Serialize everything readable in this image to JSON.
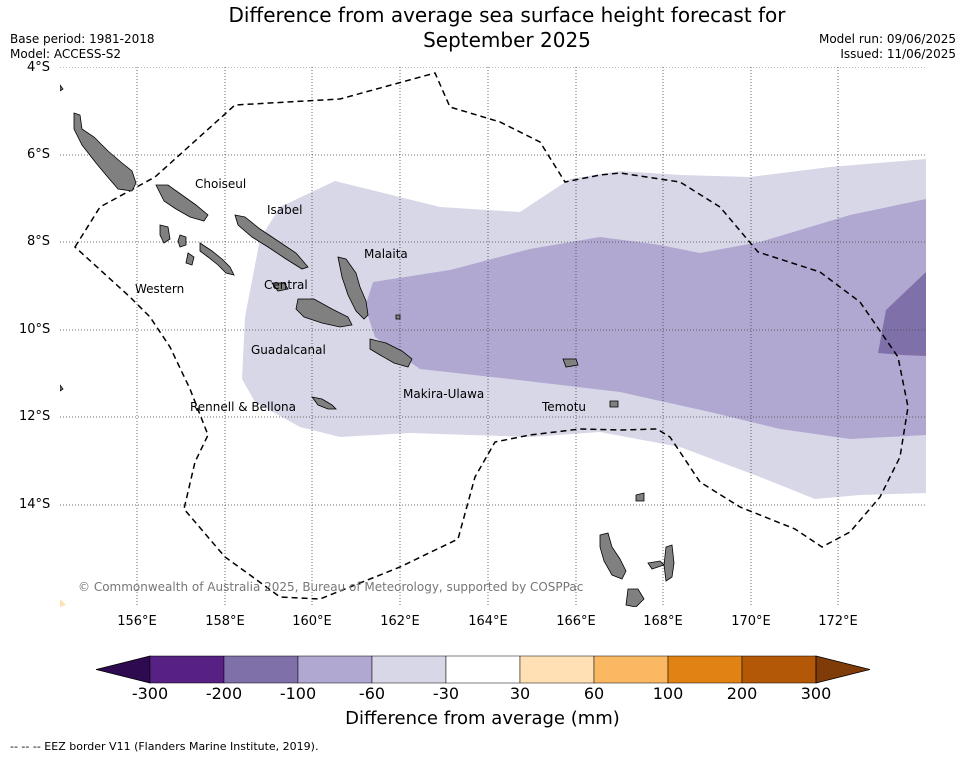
{
  "header": {
    "title_line1": "Difference from average sea surface height forecast for",
    "title_line2": "September 2025",
    "base_period": "Base period: 1981-2018",
    "model": "Model: ACCESS-S2",
    "model_run": "Model run: 09/06/2025",
    "issued": "Issued: 11/06/2025"
  },
  "map": {
    "lat_labels": [
      "4°S",
      "6°S",
      "8°S",
      "10°S",
      "12°S",
      "14°S"
    ],
    "lon_labels": [
      "156°E",
      "158°E",
      "160°E",
      "162°E",
      "164°E",
      "166°E",
      "168°E",
      "170°E",
      "172°E"
    ],
    "regions": [
      "Choiseul",
      "Isabel",
      "Malaita",
      "Western",
      "Central",
      "Guadalcanal",
      "Makira-Ulawa",
      "Rennell & Bellona",
      "Temotu"
    ],
    "copyright": "© Commonwealth of Australia 2025, Bureau of Meteorology, supported by COSPPac",
    "colors": {
      "land": "#808080",
      "anomaly_-30_to_-60": "#d7d7e8",
      "anomaly_-60_to_-100": "#b0a8d0",
      "anomaly_-100_to_-200": "#8070aa",
      "eez_border": "#000000",
      "gridline": "#333333"
    }
  },
  "colorbar": {
    "title": "Difference from average (mm)",
    "ticks": [
      "-300",
      "-200",
      "-100",
      "-60",
      "-30",
      "30",
      "60",
      "100",
      "200",
      "300"
    ],
    "colors": [
      "#2e0a50",
      "#562182",
      "#8070aa",
      "#b0a8d0",
      "#d7d7e8",
      "#ffffff",
      "#ffe0b4",
      "#fbb862",
      "#e08214",
      "#b35806",
      "#7f3b08"
    ]
  },
  "legend": {
    "eez_note": "--  --  -- EEZ border V11 (Flanders Marine Institute, 2019)."
  }
}
